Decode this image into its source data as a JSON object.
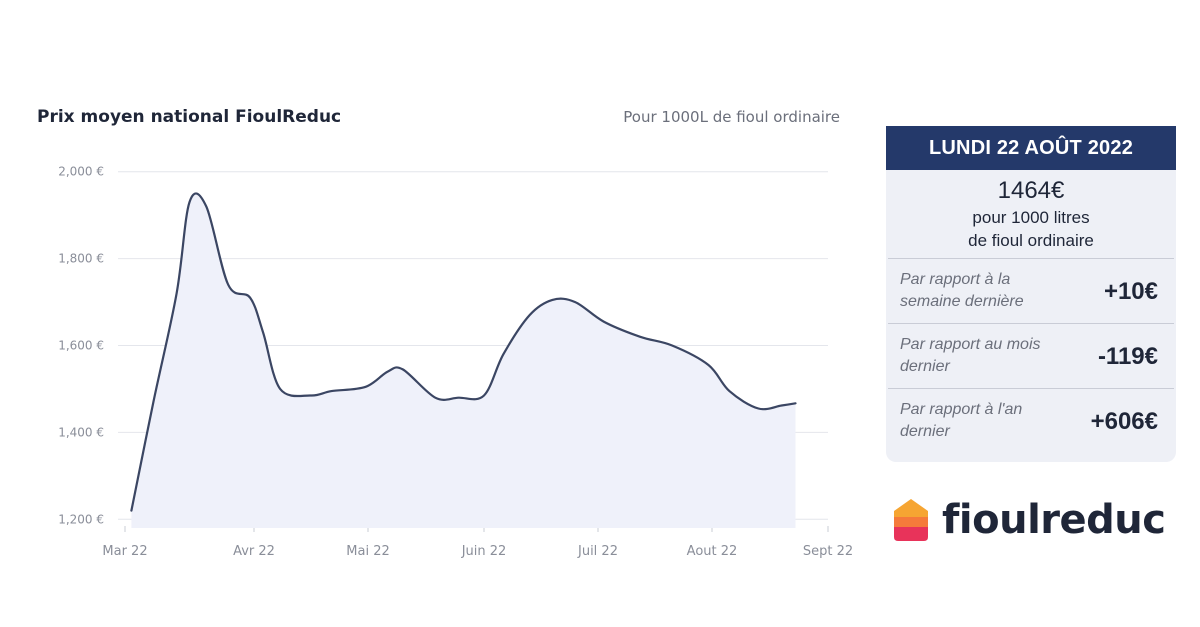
{
  "chart_data": {
    "type": "area",
    "title": "Prix moyen national FioulReduc",
    "subtitle": "Pour 1000L de fioul ordinaire",
    "x_ticks": [
      "Mar 22",
      "Avr 22",
      "Mai 22",
      "Juin 22",
      "Juil 22",
      "Aout 22",
      "Sept 22"
    ],
    "y_ticks": [
      "1,200 €",
      "1,400 €",
      "1,600 €",
      "1,800 €",
      "2,000 €"
    ],
    "y_tick_values": [
      1200,
      1400,
      1600,
      1800,
      2000
    ],
    "ylim": [
      1180,
      2050
    ],
    "xlim": [
      0,
      6
    ],
    "grid": true,
    "series": [
      {
        "name": "Prix moyen national",
        "x": [
          0.05,
          0.22,
          0.4,
          0.5,
          0.63,
          0.8,
          0.97,
          1.08,
          1.23,
          1.5,
          1.68,
          1.98,
          2.17,
          2.3,
          2.58,
          2.78,
          3.0,
          3.17,
          3.4,
          3.6,
          3.8,
          4.05,
          4.37,
          4.65,
          4.97,
          5.15,
          5.4,
          5.6,
          5.72
        ],
        "values": [
          1220,
          1470,
          1720,
          1930,
          1920,
          1740,
          1710,
          1630,
          1500,
          1485,
          1495,
          1505,
          1540,
          1545,
          1480,
          1480,
          1485,
          1580,
          1670,
          1705,
          1700,
          1655,
          1620,
          1600,
          1555,
          1495,
          1455,
          1462,
          1467
        ]
      }
    ]
  },
  "card": {
    "date": "LUNDI 22 AOÛT 2022",
    "price": "1464€",
    "price_line1": "pour 1000 litres",
    "price_line2": "de fioul ordinaire",
    "rows": [
      {
        "label": "Par rapport à la semaine dernière",
        "value": "+10€"
      },
      {
        "label": "Par rapport au mois dernier",
        "value": "-119€"
      },
      {
        "label": "Par rapport à l'an dernier",
        "value": "+606€"
      }
    ]
  },
  "logo": {
    "text": "fioulreduc",
    "colors": {
      "top": "#f6a532",
      "middle": "#f57a3b",
      "bottom": "#e8335a"
    }
  },
  "colors": {
    "line": "#3b4663",
    "fill": "#eff1fa",
    "grid": "#e4e6ec",
    "axis_text": "#8a8e99",
    "header": "#24396a"
  }
}
